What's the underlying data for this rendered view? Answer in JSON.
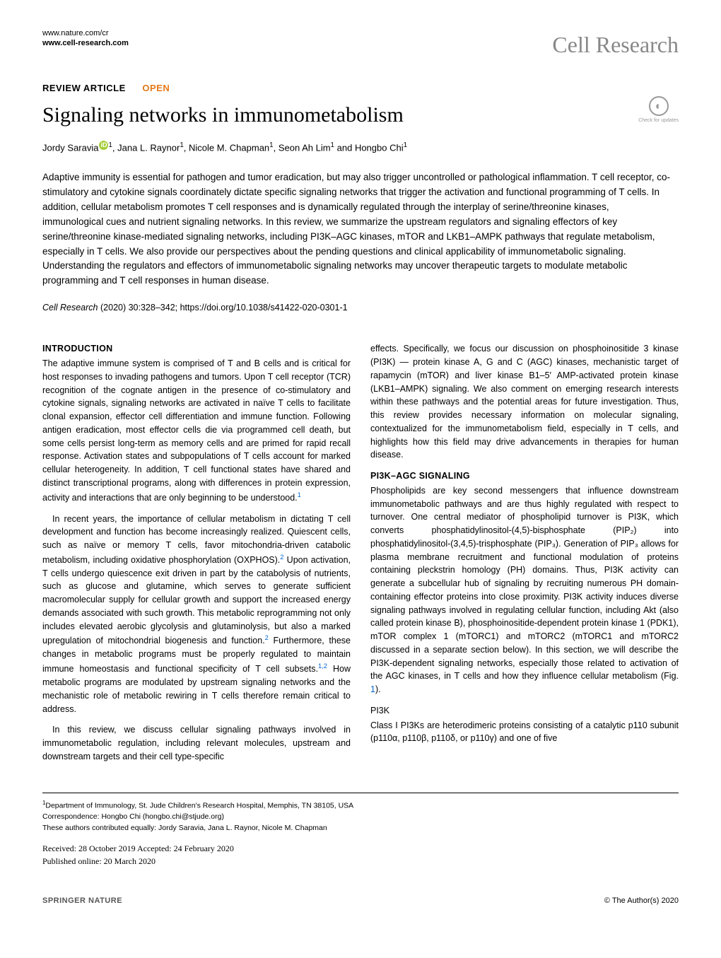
{
  "header": {
    "url1": "www.nature.com/cr",
    "url2": "www.cell-research.com",
    "journal": "Cell Research",
    "check_updates": "Check for updates"
  },
  "article": {
    "type": "REVIEW ARTICLE",
    "open": "OPEN",
    "title": "Signaling networks in immunometabolism",
    "authors_html": "Jordy Saravia|1|orcid|, Jana L. Raynor|1|, Nicole M. Chapman|1|, Seon Ah Lim|1| and Hongbo Chi|1|"
  },
  "abstract": "Adaptive immunity is essential for pathogen and tumor eradication, but may also trigger uncontrolled or pathological inflammation. T cell receptor, co-stimulatory and cytokine signals coordinately dictate specific signaling networks that trigger the activation and functional programming of T cells. In addition, cellular metabolism promotes T cell responses and is dynamically regulated through the interplay of serine/threonine kinases, immunological cues and nutrient signaling networks. In this review, we summarize the upstream regulators and signaling effectors of key serine/threonine kinase-mediated signaling networks, including PI3K–AGC kinases, mTOR and LKB1–AMPK pathways that regulate metabolism, especially in T cells. We also provide our perspectives about the pending questions and clinical applicability of immunometabolic signaling. Understanding the regulators and effectors of immunometabolic signaling networks may uncover therapeutic targets to modulate metabolic programming and T cell responses in human disease.",
  "citation": {
    "journal": "Cell Research",
    "rest": "(2020) 30:328–342; https://doi.org/10.1038/s41422-020-0301-1"
  },
  "sections": {
    "intro_heading": "INTRODUCTION",
    "intro_p1": "The adaptive immune system is comprised of T and B cells and is critical for host responses to invading pathogens and tumors. Upon T cell receptor (TCR) recognition of the cognate antigen in the presence of co-stimulatory and cytokine signals, signaling networks are activated in naïve T cells to facilitate clonal expansion, effector cell differentiation and immune function. Following antigen eradication, most effector cells die via programmed cell death, but some cells persist long-term as memory cells and are primed for rapid recall response. Activation states and subpopulations of T cells account for marked cellular heterogeneity. In addition, T cell functional states have shared and distinct transcriptional programs, along with differences in protein expression, activity and interactions that are only beginning to be understood.",
    "intro_p2": "In recent years, the importance of cellular metabolism in dictating T cell development and function has become increasingly realized. Quiescent cells, such as naïve or memory T cells, favor mitochondria-driven catabolic metabolism, including oxidative phosphorylation (OXPHOS).",
    "intro_p2b": " Upon activation, T cells undergo quiescence exit driven in part by the catabolysis of nutrients, such as glucose and glutamine, which serves to generate sufficient macromolecular supply for cellular growth and support the increased energy demands associated with such growth. This metabolic reprogramming not only includes elevated aerobic glycolysis and glutaminolysis, but also a marked upregulation of mitochondrial biogenesis and function.",
    "intro_p2c": " Furthermore, these changes in metabolic programs must be properly regulated to maintain immune homeostasis and functional specificity of T cell subsets.",
    "intro_p2d": " How metabolic programs are modulated by upstream signaling networks and the mechanistic role of metabolic rewiring in T cells therefore remain critical to address.",
    "intro_p3": "In this review, we discuss cellular signaling pathways involved in immunometabolic regulation, including relevant molecules, upstream and downstream targets and their cell type-specific",
    "col2_p1": "effects. Specifically, we focus our discussion on phosphoinositide 3 kinase (PI3K) — protein kinase A, G and C (AGC) kinases, mechanistic target of rapamycin (mTOR) and liver kinase B1–5′ AMP-activated protein kinase (LKB1–AMPK) signaling. We also comment on emerging research interests within these pathways and the potential areas for future investigation. Thus, this review provides necessary information on molecular signaling, contextualized for the immunometabolism field, especially in T cells, and highlights how this field may drive advancements in therapies for human disease.",
    "pi3k_heading": "PI3K–AGC SIGNALING",
    "pi3k_p1": "Phospholipids are key second messengers that influence downstream immunometabolic pathways and are thus highly regulated with respect to turnover. One central mediator of phospholipid turnover is PI3K, which converts phosphatidylinositol-(4,5)-bisphosphate (PIP₂) into phosphatidylinositol-(3,4,5)-trisphosphate (PIP₃). Generation of PIP₃ allows for plasma membrane recruitment and functional modulation of proteins containing pleckstrin homology (PH) domains. Thus, PI3K activity can generate a subcellular hub of signaling by recruiting numerous PH domain-containing effector proteins into close proximity. PI3K activity induces diverse signaling pathways involved in regulating cellular function, including Akt (also called protein kinase B), phosphoinositide-dependent protein kinase 1 (PDK1), mTOR complex 1 (mTORC1) and mTORC2 (mTORC1 and mTORC2 discussed in a separate section below). In this section, we will describe the PI3K-dependent signaling networks, especially those related to activation of the AGC kinases, in T cells and how they influence cellular metabolism (Fig. ",
    "pi3k_fig": "1",
    "pi3k_p1b": ").",
    "pi3k_sub": "PI3K",
    "pi3k_p2": "Class I PI3Ks are heterodimeric proteins consisting of a catalytic p110 subunit (p110α, p110β, p110δ, or p110γ) and one of five"
  },
  "footer": {
    "affiliation": "Department of Immunology, St. Jude Children's Research Hospital, Memphis, TN 38105, USA",
    "correspondence": "Correspondence: Hongbo Chi (hongbo.chi@stjude.org)",
    "equal": "These authors contributed equally: Jordy Saravia, Jana L. Raynor, Nicole M. Chapman",
    "received": "Received: 28 October 2019 Accepted: 24 February 2020",
    "published": "Published online: 20 March 2020",
    "springer": "SPRINGER NATURE",
    "copyright": "© The Author(s) 2020"
  },
  "refs": {
    "r1": "1",
    "r2": "2",
    "r12": "1,2"
  }
}
